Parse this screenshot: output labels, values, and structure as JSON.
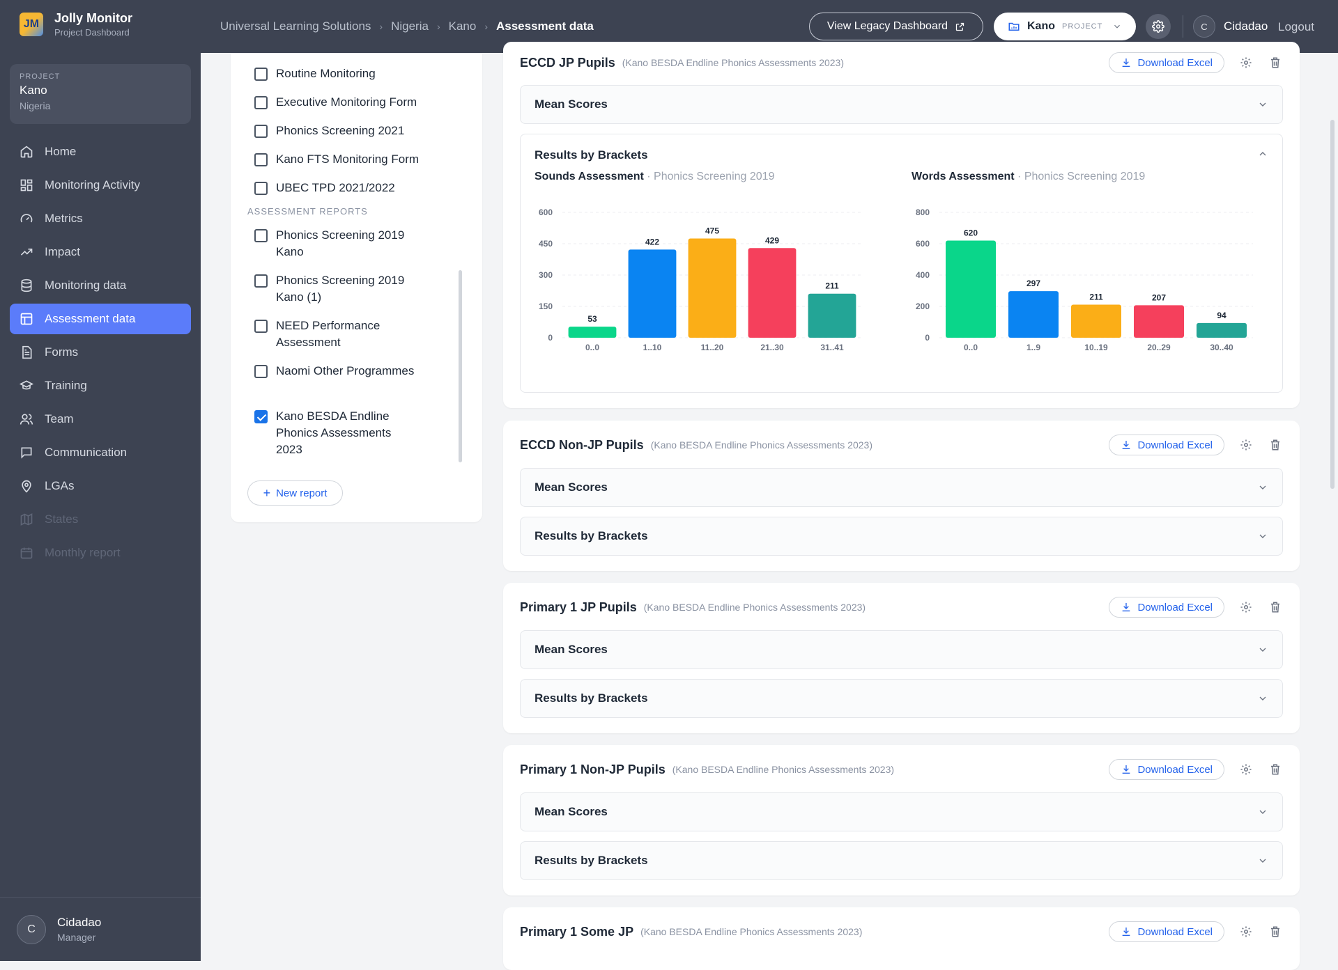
{
  "brand": {
    "logo": "JM",
    "title": "Jolly Monitor",
    "subtitle": "Project Dashboard"
  },
  "breadcrumb": [
    "Universal Learning Solutions",
    "Nigeria",
    "Kano",
    "Assessment data"
  ],
  "header": {
    "legacy_button": "View Legacy Dashboard",
    "project_name": "Kano",
    "project_tag": "PROJECT",
    "user_initial": "C",
    "user_name": "Cidadao",
    "logout": "Logout"
  },
  "sidebar": {
    "project_label": "PROJECT",
    "project_name": "Kano",
    "project_country": "Nigeria",
    "items": [
      {
        "label": "Home",
        "icon": "home-icon",
        "state": "normal"
      },
      {
        "label": "Monitoring Activity",
        "icon": "grid-icon",
        "state": "normal"
      },
      {
        "label": "Metrics",
        "icon": "gauge-icon",
        "state": "normal"
      },
      {
        "label": "Impact",
        "icon": "trend-icon",
        "state": "normal"
      },
      {
        "label": "Monitoring data",
        "icon": "database-icon",
        "state": "normal"
      },
      {
        "label": "Assessment data",
        "icon": "table-icon",
        "state": "active"
      },
      {
        "label": "Forms",
        "icon": "document-icon",
        "state": "normal"
      },
      {
        "label": "Training",
        "icon": "graduation-cap-icon",
        "state": "normal"
      },
      {
        "label": "Team",
        "icon": "users-icon",
        "state": "normal"
      },
      {
        "label": "Communication",
        "icon": "chat-icon",
        "state": "normal"
      },
      {
        "label": "LGAs",
        "icon": "map-pin-icon",
        "state": "normal"
      },
      {
        "label": "States",
        "icon": "map-icon",
        "state": "disabled"
      },
      {
        "label": "Monthly report",
        "icon": "calendar-icon",
        "state": "disabled"
      }
    ],
    "user": {
      "initial": "C",
      "name": "Cidadao",
      "role": "Manager"
    }
  },
  "report_list": {
    "monitoring": [
      {
        "label": "Routine Monitoring",
        "checked": false
      },
      {
        "label": "Executive Monitoring Form",
        "checked": false
      },
      {
        "label": "Phonics Screening 2021",
        "checked": false
      },
      {
        "label": "Kano FTS Monitoring Form",
        "checked": false
      },
      {
        "label": "UBEC TPD 2021/2022",
        "checked": false
      }
    ],
    "assessment_label": "ASSESSMENT REPORTS",
    "assessment": [
      {
        "label": "Phonics Screening 2019 Kano",
        "checked": false
      },
      {
        "label": "Phonics Screening 2019 Kano (1)",
        "checked": false
      },
      {
        "label": "NEED Performance Assessment",
        "checked": false
      },
      {
        "label": "Naomi Other Programmes",
        "checked": false
      },
      {
        "label": "Kano BESDA Endline Phonics Assessments 2023",
        "checked": true
      }
    ],
    "new_report": "New report"
  },
  "cards": [
    {
      "title": "ECCD JP Pupils",
      "subtitle": "(Kano BESDA Endline Phonics Assessments 2023)",
      "download": "Download Excel",
      "sections": [
        "Mean Scores",
        "Results by Brackets"
      ],
      "open": "Results by Brackets"
    },
    {
      "title": "ECCD Non-JP Pupils",
      "subtitle": "(Kano BESDA Endline Phonics Assessments 2023)",
      "download": "Download Excel",
      "sections": [
        "Mean Scores",
        "Results by Brackets"
      ]
    },
    {
      "title": "Primary 1 JP Pupils",
      "subtitle": "(Kano BESDA Endline Phonics Assessments 2023)",
      "download": "Download Excel",
      "sections": [
        "Mean Scores",
        "Results by Brackets"
      ]
    },
    {
      "title": "Primary 1 Non-JP Pupils",
      "subtitle": "(Kano BESDA Endline Phonics Assessments 2023)",
      "download": "Download Excel",
      "sections": [
        "Mean Scores",
        "Results by Brackets"
      ]
    },
    {
      "title": "Primary 1 Some JP",
      "subtitle": "(Kano BESDA Endline Phonics Assessments 2023)",
      "download": "Download Excel",
      "sections": []
    }
  ],
  "chart_data": [
    {
      "type": "bar",
      "title": "Sounds Assessment",
      "subtitle": "Phonics Screening 2019",
      "categories": [
        "0..0",
        "1..10",
        "11..20",
        "21..30",
        "31..41"
      ],
      "values": [
        53,
        422,
        475,
        429,
        211
      ],
      "colors": [
        "#0ad68a",
        "#0a84f2",
        "#fbae17",
        "#f5405c",
        "#23a596"
      ],
      "yticks": [
        "0",
        "150",
        "300",
        "450",
        "600"
      ],
      "ylim": [
        0,
        600
      ],
      "grid": true
    },
    {
      "type": "bar",
      "title": "Words Assessment",
      "subtitle": "Phonics Screening 2019",
      "categories": [
        "0..0",
        "1..9",
        "10..19",
        "20..29",
        "30..40"
      ],
      "values": [
        620,
        297,
        211,
        207,
        94
      ],
      "colors": [
        "#0ad68a",
        "#0a84f2",
        "#fbae17",
        "#f5405c",
        "#23a596"
      ],
      "yticks": [
        "0",
        "200",
        "400",
        "600",
        "800"
      ],
      "ylim": [
        0,
        800
      ],
      "grid": true
    }
  ]
}
